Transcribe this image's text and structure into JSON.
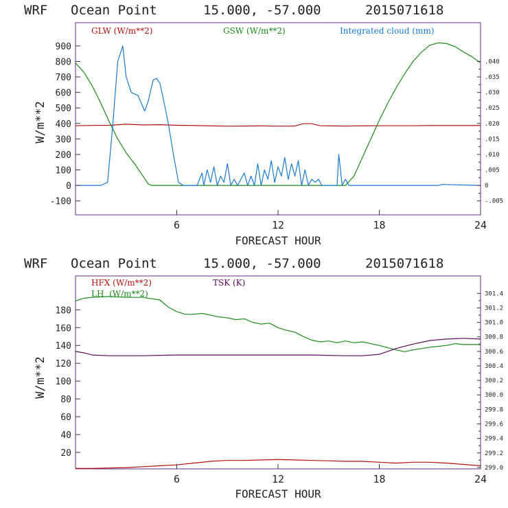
{
  "chart_data": [
    {
      "type": "line",
      "header": {
        "model": "WRF",
        "location": "Ocean Point",
        "coords": "15.000, -57.000",
        "init_time": "2015071618"
      },
      "xlabel": "FORECAST HOUR",
      "ylabel": "W/m**2",
      "xlim": [
        0,
        24
      ],
      "ylim": [
        -190,
        1050
      ],
      "y2lim": [
        -0.0095,
        0.0525
      ],
      "x_ticks": [
        6,
        12,
        18,
        24
      ],
      "y_ticks": [
        -100,
        0,
        100,
        200,
        300,
        400,
        500,
        600,
        700,
        800,
        900
      ],
      "y2_ticks": [
        -0.005,
        0.0,
        0.005,
        0.01,
        0.015,
        0.02,
        0.025,
        0.03,
        0.035,
        0.04
      ],
      "y2_tick_labels": [
        "-.005",
        "0",
        ".005",
        ".010",
        ".015",
        ".020",
        ".025",
        ".030",
        ".035",
        ".040"
      ],
      "legend": [
        {
          "label": "GLW (W/m**2)",
          "color": "#b01010"
        },
        {
          "label": "GSW (W/m**2)",
          "color": "#1a8a1a"
        },
        {
          "label": "Integrated cloud (mm)",
          "color": "#1a7ad4"
        }
      ],
      "series": [
        {
          "name": "GLW (W/m**2)",
          "color": "#b01010",
          "axis": "left",
          "x": [
            0,
            1,
            2,
            3,
            4,
            5,
            6,
            7,
            8,
            9,
            10,
            11,
            12,
            13,
            13.5,
            14,
            14.5,
            15,
            16,
            17,
            18,
            19,
            20,
            21,
            22,
            23,
            24
          ],
          "y": [
            385,
            387,
            388,
            395,
            390,
            392,
            388,
            386,
            384,
            382,
            383,
            384,
            382,
            383,
            398,
            398,
            385,
            384,
            383,
            384,
            385,
            385,
            385,
            386,
            386,
            386,
            386
          ]
        },
        {
          "name": "GSW (W/m**2)",
          "color": "#1a8a1a",
          "axis": "left",
          "x": [
            0,
            0.5,
            1,
            1.5,
            2,
            2.5,
            3,
            3.5,
            4,
            4.3,
            4.5,
            6,
            10,
            15,
            16,
            16.5,
            17,
            17.5,
            18,
            18.5,
            19,
            19.5,
            20,
            20.5,
            21,
            21.5,
            22,
            22.5,
            23,
            23.5,
            24
          ],
          "y": [
            790,
            730,
            640,
            530,
            410,
            300,
            210,
            140,
            60,
            10,
            0,
            0,
            0,
            0,
            0,
            60,
            180,
            300,
            420,
            530,
            630,
            720,
            800,
            860,
            905,
            920,
            915,
            895,
            860,
            830,
            790
          ]
        },
        {
          "name": "Integrated cloud (mm)",
          "color": "#1a7ad4",
          "axis": "right",
          "x": [
            0,
            1.5,
            1.9,
            2.2,
            2.5,
            2.8,
            3.0,
            3.3,
            3.7,
            4.1,
            4.3,
            4.6,
            4.8,
            5.0,
            5.2,
            5.5,
            5.8,
            6.1,
            6.4,
            6.8,
            7.2,
            7.5,
            7.6,
            7.8,
            8.0,
            8.2,
            8.4,
            8.6,
            8.8,
            9.0,
            9.2,
            9.4,
            9.6,
            10.0,
            10.2,
            10.4,
            10.6,
            10.8,
            11.0,
            11.2,
            11.4,
            11.6,
            11.8,
            12.0,
            12.2,
            12.4,
            12.6,
            12.8,
            13.0,
            13.2,
            13.4,
            13.6,
            13.8,
            14.0,
            14.2,
            14.4,
            14.6,
            15.0,
            15.5,
            15.6,
            15.8,
            16.0,
            16.2,
            17,
            18,
            20,
            21.5,
            21.7,
            24
          ],
          "y": [
            0,
            0,
            0.001,
            0.019,
            0.04,
            0.045,
            0.035,
            0.03,
            0.029,
            0.024,
            0.027,
            0.034,
            0.0345,
            0.033,
            0.028,
            0.02,
            0.01,
            0.001,
            0,
            0,
            0,
            0.004,
            0,
            0.005,
            0.001,
            0.006,
            0,
            0.003,
            0.001,
            0.007,
            0,
            0.002,
            0,
            0.004,
            0,
            0.003,
            0,
            0.007,
            0,
            0.005,
            0.002,
            0.008,
            0.001,
            0.006,
            0.003,
            0.009,
            0.002,
            0.007,
            0.003,
            0.008,
            0,
            0.005,
            0,
            0.002,
            0.001,
            0.002,
            0,
            0,
            0,
            0.01,
            0,
            0.002,
            0,
            0,
            0,
            0,
            0,
            0.0003,
            0
          ]
        }
      ]
    },
    {
      "type": "line",
      "header": {
        "model": "WRF",
        "location": "Ocean Point",
        "coords": "15.000, -57.000",
        "init_time": "2015071618"
      },
      "xlabel": "FORECAST HOUR",
      "ylabel": "W/m**2",
      "xlim": [
        0,
        24
      ],
      "ylim": [
        1.5,
        218
      ],
      "y2lim": [
        298.98,
        301.64
      ],
      "x_ticks": [
        6,
        12,
        18,
        24
      ],
      "y_ticks": [
        20,
        40,
        60,
        80,
        100,
        120,
        140,
        160,
        180
      ],
      "y2_ticks": [
        299.0,
        299.2,
        299.4,
        299.6,
        299.8,
        300.0,
        300.2,
        300.4,
        300.6,
        300.8,
        301.0,
        301.2,
        301.4
      ],
      "y2_tick_labels": [
        "299.0",
        "299.2",
        "299.4",
        "299.6",
        "299.8",
        "300.0",
        "300.2",
        "300.4",
        "300.6",
        "300.8",
        "301.0",
        "301.2",
        "301.4"
      ],
      "legend": [
        {
          "label": "HFX (W/m**2)",
          "color": "#b01010"
        },
        {
          "label": "LH  (W/m**2)",
          "color": "#1a8a1a"
        },
        {
          "label": "TSK (K)",
          "color": "#5a0a5a"
        }
      ],
      "series": [
        {
          "name": "HFX (W/m**2)",
          "color": "#b01010",
          "axis": "left",
          "x": [
            0,
            1,
            2,
            3,
            4,
            5,
            6,
            7,
            8,
            9,
            10,
            11,
            12,
            13,
            14,
            15,
            16,
            17,
            18,
            19,
            20,
            21,
            22,
            23,
            24
          ],
          "y": [
            2,
            2,
            2.5,
            3,
            4,
            5,
            6,
            8,
            10,
            11,
            11,
            11.5,
            12,
            11.5,
            11,
            10.5,
            10,
            10,
            9,
            8,
            9,
            9,
            8,
            6.5,
            5
          ]
        },
        {
          "name": "LH  (W/m**2)",
          "color": "#1a8a1a",
          "axis": "left",
          "x": [
            0,
            0.5,
            1,
            2,
            3,
            4,
            5,
            5.5,
            6,
            6.5,
            7,
            7.5,
            8,
            8.5,
            9,
            9.5,
            10,
            10.5,
            11,
            11.5,
            12,
            12.5,
            13,
            13.5,
            14,
            14.5,
            15,
            15.5,
            16,
            16.5,
            17,
            17.5,
            18,
            19,
            19.5,
            20,
            21,
            22,
            22.5,
            23,
            24
          ],
          "y": [
            190,
            193,
            194,
            195,
            194,
            194,
            191,
            183,
            178,
            175,
            175,
            176,
            174,
            172,
            171,
            169,
            170,
            166,
            164,
            165,
            160,
            157,
            155,
            150,
            146,
            144,
            145,
            143,
            145,
            143,
            144,
            142,
            140,
            135,
            133,
            135,
            138,
            140,
            142,
            141,
            141
          ]
        },
        {
          "name": "TSK (K)",
          "color": "#5a0a5a",
          "axis": "right",
          "x": [
            0,
            0.5,
            1,
            2,
            3,
            4,
            6,
            8,
            10,
            12,
            14,
            16,
            17,
            18,
            18.5,
            19,
            20,
            21,
            22,
            23,
            24
          ],
          "y": [
            300.6,
            300.58,
            300.55,
            300.54,
            300.54,
            300.54,
            300.55,
            300.55,
            300.55,
            300.55,
            300.55,
            300.54,
            300.54,
            300.56,
            300.6,
            300.64,
            300.7,
            300.75,
            300.77,
            300.78,
            300.77
          ]
        }
      ]
    }
  ]
}
